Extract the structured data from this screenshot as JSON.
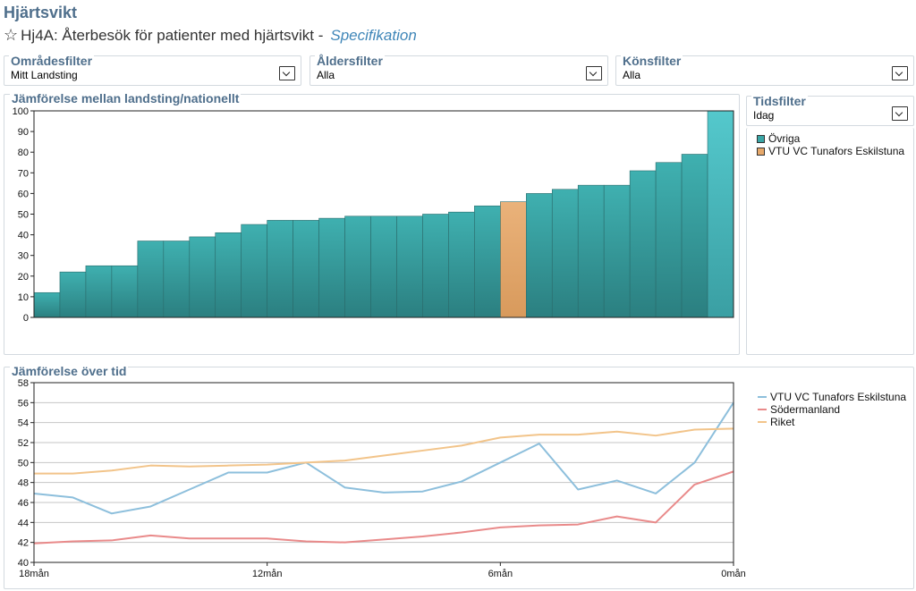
{
  "header": {
    "title": "Hjärtsvikt",
    "star": "☆",
    "indicator": "Hj4A: Återbesök för patienter med hjärtsvikt -",
    "spec_link": "Specifikation"
  },
  "filters": {
    "area": {
      "label": "Områdesfilter",
      "value": "Mitt Landsting"
    },
    "age": {
      "label": "Åldersfilter",
      "value": "Alla"
    },
    "gender": {
      "label": "Könsfilter",
      "value": "Alla"
    },
    "time": {
      "label": "Tidsfilter",
      "value": "Idag"
    }
  },
  "panels": {
    "comparison_title": "Jämförelse mellan landsting/nationellt",
    "time_title": "Jämförelse över tid"
  },
  "colors": {
    "teal": "#3aa6a6",
    "highlight": "#e6a86a",
    "line_unit": "#8dbfdc",
    "line_region": "#e98a8a",
    "line_nation": "#f2c48a"
  },
  "chart_data": [
    {
      "type": "bar",
      "title": "Jämförelse mellan landsting/nationellt",
      "ylim": [
        0,
        100
      ],
      "yticks": [
        0,
        10,
        20,
        30,
        40,
        50,
        60,
        70,
        80,
        90,
        100
      ],
      "values": [
        12,
        22,
        25,
        25,
        37,
        37,
        39,
        41,
        45,
        47,
        47,
        48,
        49,
        49,
        49,
        50,
        51,
        54,
        56,
        60,
        62,
        64,
        64,
        71,
        75,
        79,
        100
      ],
      "highlight_index": 18,
      "legend": [
        "Övriga",
        "VTU VC Tunafors Eskilstuna"
      ],
      "legend_placement": "right",
      "grid": false
    },
    {
      "type": "line",
      "title": "Jämförelse över tid",
      "ylim": [
        40,
        58
      ],
      "yticks": [
        40,
        42,
        44,
        46,
        48,
        50,
        52,
        54,
        56,
        58
      ],
      "xlim": [
        18,
        0
      ],
      "xticks": [
        "18mån",
        "12mån",
        "6mån",
        "0mån"
      ],
      "xtick_values": [
        18,
        12,
        6,
        0
      ],
      "grid": true,
      "legend_placement": "right",
      "series": [
        {
          "name": "VTU VC Tunafors Eskilstuna",
          "x": [
            18,
            17,
            16,
            15,
            14,
            13,
            12,
            11,
            10,
            9,
            8,
            7,
            6,
            5,
            4,
            3,
            2,
            1,
            0
          ],
          "values": [
            46.9,
            46.5,
            44.9,
            45.6,
            47.3,
            49.0,
            49.0,
            50.0,
            47.5,
            47.0,
            47.1,
            48.1,
            50.0,
            51.9,
            47.3,
            48.2,
            46.9,
            50.0,
            56.0
          ]
        },
        {
          "name": "Södermanland",
          "x": [
            18,
            17,
            16,
            15,
            14,
            13,
            12,
            11,
            10,
            9,
            8,
            7,
            6,
            5,
            4,
            3,
            2,
            1,
            0
          ],
          "values": [
            41.9,
            42.1,
            42.2,
            42.7,
            42.4,
            42.4,
            42.4,
            42.1,
            42.0,
            42.3,
            42.6,
            43.0,
            43.5,
            43.7,
            43.8,
            44.6,
            44.0,
            47.8,
            49.1
          ]
        },
        {
          "name": "Riket",
          "x": [
            18,
            17,
            16,
            15,
            14,
            13,
            12,
            11,
            10,
            9,
            8,
            7,
            6,
            5,
            4,
            3,
            2,
            1,
            0
          ],
          "values": [
            48.9,
            48.9,
            49.2,
            49.7,
            49.6,
            49.7,
            49.8,
            50.0,
            50.2,
            50.7,
            51.2,
            51.7,
            52.5,
            52.8,
            52.8,
            53.1,
            52.7,
            53.3,
            53.4
          ]
        }
      ]
    }
  ]
}
